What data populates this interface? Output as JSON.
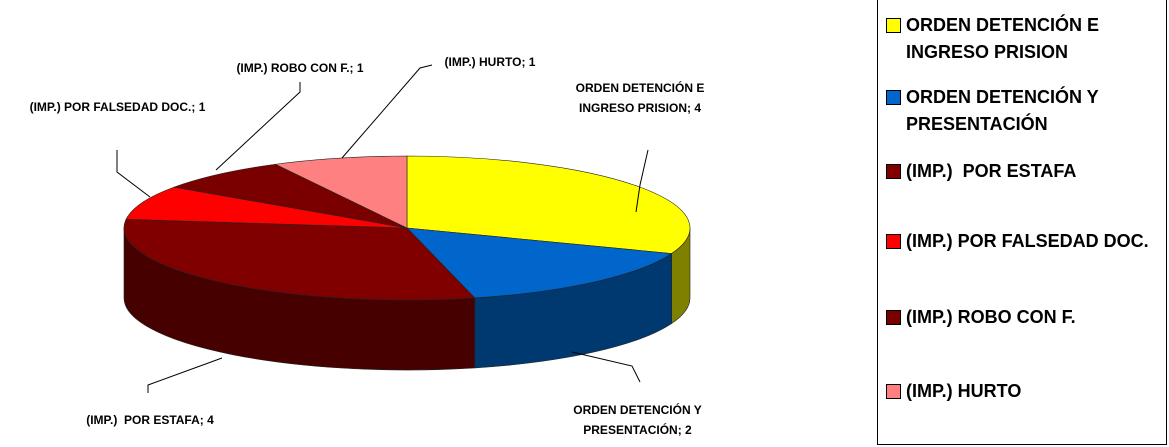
{
  "chart_data": {
    "type": "pie",
    "categories": [
      "ORDEN DETENCIÓN E INGRESO PRISION",
      "ORDEN DETENCIÓN Y PRESENTACIÓN",
      "(IMP.)  POR ESTAFA",
      "(IMP.) POR FALSEDAD DOC.",
      "(IMP.) ROBO CON F.",
      "(IMP.) HURTO"
    ],
    "values": [
      4,
      2,
      4,
      1,
      1,
      1
    ],
    "value_labels": [
      "ORDEN DETENCIÓN E INGRESO PRISION; 4",
      "ORDEN DETENCIÓN Y PRESENTACIÓN; 2",
      "(IMP.)  POR ESTAFA; 4",
      "(IMP.) POR FALSEDAD DOC.; 1",
      "(IMP.) ROBO CON F.; 1",
      "(IMP.) HURTO; 1"
    ],
    "colors": [
      "#ffff00",
      "#0066cc",
      "#800000",
      "#ff0000",
      "#7a0000",
      "#ff8080"
    ]
  }
}
